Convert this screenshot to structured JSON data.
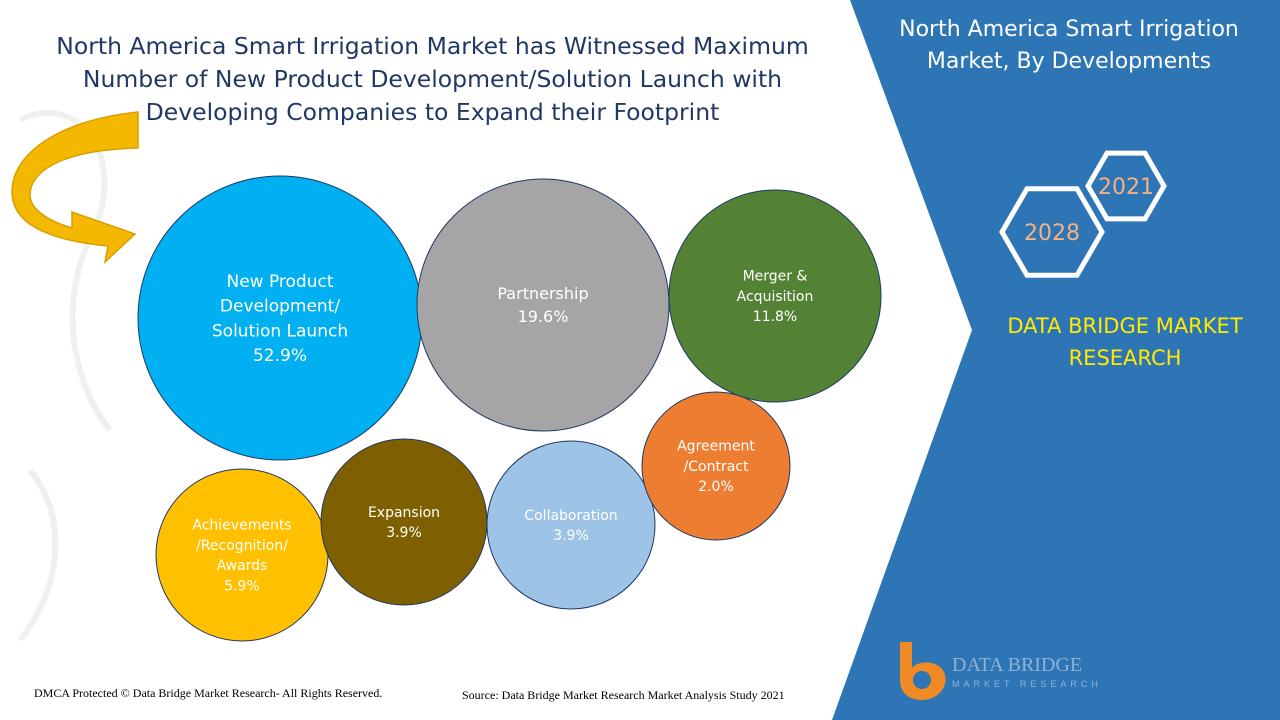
{
  "title": "North America Smart Irrigation Market has Witnessed Maximum Number of New Product Development/Solution Launch with Developing Companies to Expand their Footprint",
  "side_panel": {
    "title": "North America Smart Irrigation Market, By Developments",
    "year_start": "2021",
    "year_end": "2028",
    "brand": "DATA BRIDGE MARKET RESEARCH",
    "logo_text": "DATA BRIDGE",
    "logo_subtext": "MARKET RESEARCH"
  },
  "footer": {
    "copyright": "DMCA Protected © Data Bridge Market Research- All Rights Reserved.",
    "source": "Source: Data Bridge Market Research Market Analysis Study 2021"
  },
  "colors": {
    "panel_blue": "#2e75b6",
    "title_text": "#1f3864",
    "brand_yellow": "#ffea00",
    "arrow_gold": "#f5b800"
  },
  "chart_data": {
    "type": "bubble",
    "unit": "%",
    "series": [
      {
        "label_lines": [
          "New Product",
          "Development/",
          "Solution Launch"
        ],
        "value": 52.9,
        "value_label": "52.9%",
        "color": "#00b0f0",
        "text_color": "#ffffff"
      },
      {
        "label_lines": [
          "Partnership"
        ],
        "value": 19.6,
        "value_label": "19.6%",
        "color": "#a5a5a5",
        "text_color": "#ffffff"
      },
      {
        "label_lines": [
          "Merger &",
          "Acquisition"
        ],
        "value": 11.8,
        "value_label": "11.8%",
        "color": "#548235",
        "text_color": "#ffffff"
      },
      {
        "label_lines": [
          "Achievements",
          "/Recognition/",
          "Awards"
        ],
        "value": 5.9,
        "value_label": "5.9%",
        "color": "#ffc000",
        "text_color": "#ffffff"
      },
      {
        "label_lines": [
          "Expansion"
        ],
        "value": 3.9,
        "value_label": "3.9%",
        "color": "#7f6000",
        "text_color": "#ffffff"
      },
      {
        "label_lines": [
          "Collaboration"
        ],
        "value": 3.9,
        "value_label": "3.9%",
        "color": "#9dc3e6",
        "text_color": "#ffffff"
      },
      {
        "label_lines": [
          "Agreement",
          "/Contract"
        ],
        "value": 2.0,
        "value_label": "2.0%",
        "color": "#ed7d31",
        "text_color": "#ffffff"
      }
    ]
  }
}
